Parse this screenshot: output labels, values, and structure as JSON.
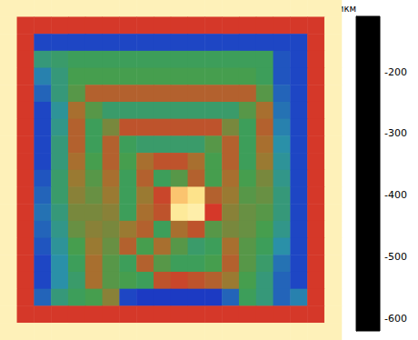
{
  "chart_data": {
    "type": "heatmap",
    "colorbar_label": "мкм",
    "colorbar_range": [
      -620,
      -110
    ],
    "colorbar_ticks": [
      -200,
      -300,
      -400,
      -500,
      -600
    ],
    "cells": [
      [
        -140,
        -140,
        -140,
        -140,
        -140,
        -140,
        -140,
        -140,
        -140,
        -140,
        -140,
        -140,
        -140,
        -140,
        -140,
        -140,
        -140,
        -140,
        -140,
        -140
      ],
      [
        -140,
        -290,
        -290,
        -290,
        -290,
        -290,
        -290,
        -290,
        -290,
        -290,
        -290,
        -290,
        -290,
        -290,
        -290,
        -290,
        -290,
        -290,
        -290,
        -140
      ],
      [
        -140,
        -290,
        -500,
        -500,
        -500,
        -500,
        -500,
        -500,
        -500,
        -500,
        -500,
        -500,
        -500,
        -500,
        -500,
        -500,
        -500,
        -500,
        -290,
        -140
      ],
      [
        -140,
        -290,
        -420,
        -410,
        -400,
        -400,
        -400,
        -400,
        -400,
        -400,
        -400,
        -400,
        -400,
        -400,
        -400,
        -400,
        -490,
        -500,
        -290,
        -140
      ],
      [
        -140,
        -290,
        -460,
        -420,
        -390,
        -390,
        -390,
        -390,
        -390,
        -390,
        -390,
        -390,
        -390,
        -390,
        -390,
        -400,
        -490,
        -500,
        -290,
        -140
      ],
      [
        -140,
        -290,
        -480,
        -420,
        -380,
        -320,
        -320,
        -320,
        -320,
        -320,
        -320,
        -320,
        -320,
        -320,
        -320,
        -380,
        -480,
        -500,
        -290,
        -140
      ],
      [
        -140,
        -290,
        -500,
        -440,
        -330,
        -380,
        -410,
        -410,
        -410,
        -410,
        -410,
        -410,
        -410,
        -410,
        -380,
        -330,
        -470,
        -500,
        -290,
        -140
      ],
      [
        -140,
        -290,
        -500,
        -430,
        -320,
        -400,
        -360,
        -310,
        -310,
        -310,
        -310,
        -310,
        -310,
        -360,
        -400,
        -320,
        -460,
        -500,
        -290,
        -140
      ],
      [
        -140,
        -290,
        -500,
        -420,
        -320,
        -400,
        -320,
        -400,
        -410,
        -410,
        -410,
        -410,
        -380,
        -320,
        -400,
        -330,
        -450,
        -500,
        -290,
        -140
      ],
      [
        -140,
        -290,
        -500,
        -420,
        -330,
        -390,
        -320,
        -390,
        -330,
        -310,
        -310,
        -330,
        -390,
        -320,
        -400,
        -340,
        -440,
        -500,
        -290,
        -140
      ],
      [
        -140,
        -290,
        -490,
        -410,
        -340,
        -380,
        -330,
        -400,
        -320,
        -400,
        -380,
        -320,
        -390,
        -330,
        -390,
        -360,
        -430,
        -500,
        -290,
        -140
      ],
      [
        -140,
        -290,
        -480,
        -410,
        -350,
        -370,
        -340,
        -400,
        -340,
        -300,
        -190,
        -170,
        -320,
        -340,
        -380,
        -370,
        -420,
        -500,
        -290,
        -140
      ],
      [
        -140,
        -290,
        -470,
        -420,
        -360,
        -360,
        -350,
        -400,
        -330,
        -310,
        -160,
        -150,
        -290,
        -350,
        -370,
        -380,
        -420,
        -500,
        -290,
        -140
      ],
      [
        -140,
        -290,
        -480,
        -430,
        -370,
        -350,
        -360,
        -340,
        -320,
        -400,
        -330,
        -310,
        -380,
        -360,
        -370,
        -390,
        -430,
        -500,
        -290,
        -140
      ],
      [
        -140,
        -290,
        -490,
        -440,
        -390,
        -340,
        -370,
        -320,
        -390,
        -330,
        -380,
        -410,
        -400,
        -330,
        -380,
        -400,
        -450,
        -500,
        -290,
        -140
      ],
      [
        -140,
        -290,
        -500,
        -450,
        -400,
        -330,
        -380,
        -400,
        -320,
        -380,
        -400,
        -400,
        -390,
        -320,
        -380,
        -410,
        -470,
        -500,
        -290,
        -140
      ],
      [
        -140,
        -290,
        -500,
        -450,
        -410,
        -330,
        -380,
        -390,
        -400,
        -310,
        -300,
        -310,
        -320,
        -340,
        -390,
        -420,
        -480,
        -500,
        -290,
        -140
      ],
      [
        -140,
        -290,
        -480,
        -420,
        -400,
        -390,
        -350,
        -500,
        -510,
        -510,
        -510,
        -510,
        -510,
        -480,
        -400,
        -420,
        -480,
        -460,
        -290,
        -140
      ],
      [
        -140,
        -290,
        -290,
        -290,
        -290,
        -290,
        -290,
        -290,
        -290,
        -290,
        -290,
        -290,
        -290,
        -290,
        -290,
        -290,
        -290,
        -290,
        -290,
        -140
      ],
      [
        -140,
        -140,
        -140,
        -140,
        -140,
        -140,
        -140,
        -140,
        -140,
        -140,
        -140,
        -140,
        -140,
        -140,
        -140,
        -140,
        -140,
        -140,
        -140,
        -140
      ]
    ]
  }
}
